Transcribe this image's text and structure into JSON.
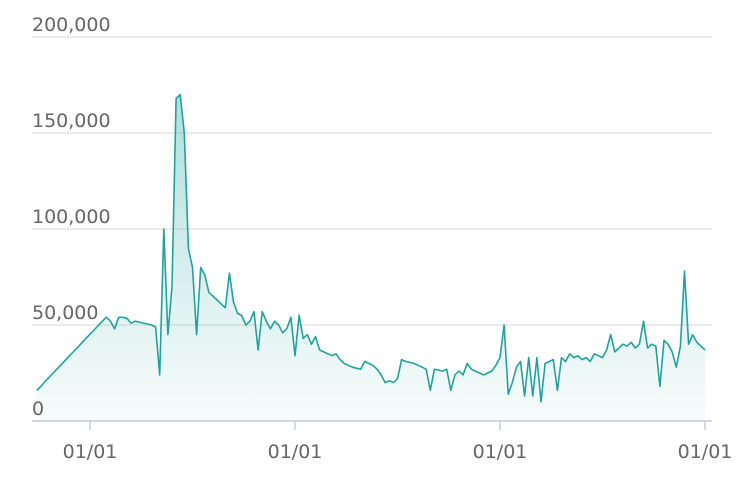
{
  "chart_data": {
    "type": "area",
    "color": "#1fa39c",
    "categories": [
      null,
      null,
      null,
      null,
      null,
      null,
      null,
      null,
      null,
      null,
      null,
      null,
      null,
      "01/01",
      null,
      null,
      null,
      null,
      null,
      null,
      null,
      null,
      null,
      null,
      null,
      null,
      null,
      null,
      null,
      null,
      null,
      null,
      null,
      null,
      null,
      null,
      null,
      null,
      null,
      null,
      null,
      null,
      null,
      null,
      null,
      null,
      null,
      null,
      null,
      null,
      null,
      null,
      null,
      null,
      null,
      null,
      null,
      null,
      null,
      null,
      null,
      null,
      null,
      "01/01",
      null,
      null,
      null,
      null,
      null,
      null,
      null,
      null,
      null,
      null,
      null,
      null,
      null,
      null,
      null,
      null,
      null,
      null,
      null,
      null,
      null,
      null,
      null,
      null,
      null,
      null,
      null,
      null,
      null,
      null,
      null,
      null,
      null,
      null,
      null,
      null,
      null,
      null,
      null,
      null,
      null,
      null,
      null,
      null,
      null,
      null,
      null,
      null,
      null,
      "01/01",
      null,
      null,
      null,
      null,
      null,
      null,
      null,
      null,
      null,
      null,
      null,
      null,
      null,
      null,
      null,
      null,
      null,
      null,
      null,
      null,
      null,
      null,
      null,
      null,
      null,
      null,
      null,
      null,
      null,
      null,
      null,
      null,
      null,
      null,
      null,
      null,
      null,
      null,
      null,
      null,
      null,
      null,
      null,
      null,
      null,
      null,
      null,
      null,
      null,
      "01/01"
    ],
    "values": [
      16000,
      18000,
      20500,
      22700,
      25000,
      27200,
      29400,
      31700,
      34000,
      36200,
      38400,
      40700,
      43000,
      45200,
      47400,
      49700,
      52000,
      54000,
      52000,
      48000,
      54000,
      54000,
      53500,
      51000,
      52000,
      51500,
      51000,
      50500,
      50000,
      49000,
      24000,
      100000,
      45000,
      70000,
      168000,
      170000,
      150000,
      90000,
      80000,
      45000,
      80000,
      76000,
      67000,
      65000,
      63000,
      61000,
      59000,
      77000,
      62000,
      56000,
      55000,
      50000,
      52000,
      57000,
      37000,
      57000,
      52000,
      48000,
      52000,
      50000,
      46000,
      48000,
      54000,
      34000,
      55000,
      43000,
      45000,
      40000,
      44000,
      37000,
      36000,
      35000,
      34000,
      35000,
      32000,
      30000,
      29000,
      28000,
      27500,
      27000,
      31000,
      30000,
      29000,
      27000,
      24000,
      20000,
      21000,
      20000,
      22000,
      32000,
      31000,
      30500,
      30000,
      29000,
      28000,
      27000,
      16000,
      27000,
      26500,
      26000,
      27000,
      16000,
      24000,
      26000,
      24000,
      30000,
      27000,
      26000,
      25000,
      24000,
      25000,
      26000,
      29000,
      33000,
      50000,
      14000,
      20000,
      28000,
      31000,
      13000,
      33000,
      13000,
      33000,
      10000,
      30000,
      31000,
      32000,
      16000,
      33000,
      31000,
      35000,
      33000,
      34000,
      32000,
      33000,
      31000,
      35000,
      34000,
      33000,
      37000,
      45000,
      36000,
      38000,
      40000,
      39000,
      41000,
      38000,
      40000,
      52000,
      38000,
      40000,
      39000,
      18000,
      42000,
      40000,
      36000,
      28000,
      39000,
      78000,
      40000,
      45000,
      41000,
      39000,
      37000
    ],
    "ylim": [
      0,
      200000
    ],
    "yticks": [
      0,
      {
        "value": 50000,
        "label": "50,000"
      },
      {
        "value": 100000,
        "label": "100,000"
      },
      {
        "value": 150000,
        "label": "150,000"
      },
      {
        "value": 200000,
        "label": "200,000"
      }
    ],
    "grid": true
  }
}
